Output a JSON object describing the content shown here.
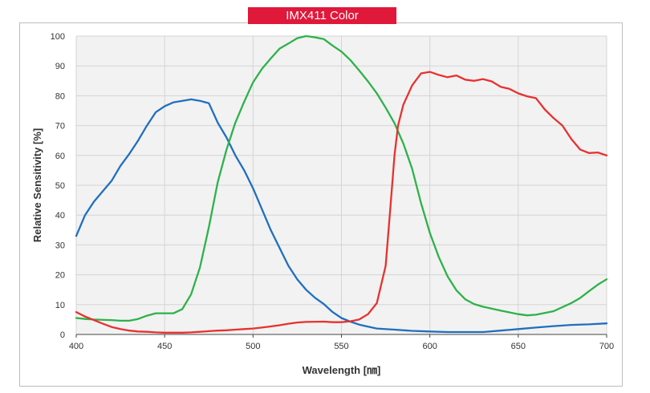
{
  "chart_data": {
    "type": "line",
    "title": "IMX411 Color",
    "xlabel": "Wavelength [㎚]",
    "ylabel": "Relative Sensitivity [%]",
    "xlim": [
      400,
      700
    ],
    "ylim": [
      0,
      100
    ],
    "x_ticks": [
      400,
      450,
      500,
      550,
      600,
      650,
      700
    ],
    "y_ticks": [
      0,
      10,
      20,
      30,
      40,
      50,
      60,
      70,
      80,
      90,
      100
    ],
    "grid": true,
    "legend": "none",
    "colors": {
      "blue": "#1f6fbf",
      "green": "#2db24a",
      "red": "#e8312f",
      "grid": "#d4d4d4",
      "plot_bg": "#f2f2f2",
      "badge": "#e0183a"
    },
    "series": [
      {
        "color": "blue",
        "points": [
          [
            400,
            33
          ],
          [
            405,
            40
          ],
          [
            410,
            44.5
          ],
          [
            415,
            48
          ],
          [
            420,
            51.5
          ],
          [
            425,
            56.5
          ],
          [
            430,
            60.5
          ],
          [
            435,
            65
          ],
          [
            440,
            70
          ],
          [
            445,
            74.5
          ],
          [
            450,
            76.5
          ],
          [
            455,
            77.8
          ],
          [
            460,
            78.3
          ],
          [
            465,
            78.8
          ],
          [
            470,
            78.3
          ],
          [
            475,
            77.5
          ],
          [
            480,
            71
          ],
          [
            485,
            66
          ],
          [
            490,
            60
          ],
          [
            495,
            55
          ],
          [
            500,
            49
          ],
          [
            505,
            42
          ],
          [
            510,
            35
          ],
          [
            515,
            29
          ],
          [
            520,
            23
          ],
          [
            525,
            18.5
          ],
          [
            530,
            15
          ],
          [
            535,
            12.3
          ],
          [
            540,
            10.2
          ],
          [
            545,
            7.5
          ],
          [
            550,
            5.5
          ],
          [
            555,
            4.3
          ],
          [
            560,
            3.3
          ],
          [
            565,
            2.6
          ],
          [
            570,
            2
          ],
          [
            580,
            1.6
          ],
          [
            590,
            1.2
          ],
          [
            600,
            1
          ],
          [
            610,
            0.8
          ],
          [
            620,
            0.8
          ],
          [
            630,
            0.8
          ],
          [
            640,
            1.3
          ],
          [
            650,
            1.8
          ],
          [
            660,
            2.3
          ],
          [
            670,
            2.8
          ],
          [
            680,
            3.2
          ],
          [
            690,
            3.4
          ],
          [
            700,
            3.7
          ]
        ]
      },
      {
        "color": "green",
        "points": [
          [
            400,
            5.5
          ],
          [
            405,
            5.2
          ],
          [
            410,
            5.0
          ],
          [
            420,
            4.8
          ],
          [
            425,
            4.6
          ],
          [
            430,
            4.6
          ],
          [
            435,
            5.2
          ],
          [
            440,
            6.3
          ],
          [
            445,
            7.1
          ],
          [
            450,
            7.1
          ],
          [
            455,
            7.1
          ],
          [
            460,
            8.5
          ],
          [
            465,
            13.5
          ],
          [
            470,
            22.5
          ],
          [
            475,
            36
          ],
          [
            480,
            51
          ],
          [
            485,
            62
          ],
          [
            490,
            71
          ],
          [
            495,
            78
          ],
          [
            500,
            84.5
          ],
          [
            505,
            89
          ],
          [
            510,
            92.5
          ],
          [
            515,
            95.8
          ],
          [
            520,
            97.5
          ],
          [
            525,
            99.3
          ],
          [
            530,
            100
          ],
          [
            535,
            99.6
          ],
          [
            540,
            99
          ],
          [
            545,
            96.8
          ],
          [
            550,
            94.8
          ],
          [
            555,
            92
          ],
          [
            560,
            88.5
          ],
          [
            565,
            84.8
          ],
          [
            570,
            80.8
          ],
          [
            575,
            76
          ],
          [
            580,
            70.8
          ],
          [
            585,
            64
          ],
          [
            590,
            55.5
          ],
          [
            595,
            44
          ],
          [
            600,
            34
          ],
          [
            605,
            26
          ],
          [
            610,
            19.5
          ],
          [
            615,
            14.8
          ],
          [
            620,
            11.8
          ],
          [
            625,
            10.2
          ],
          [
            630,
            9.3
          ],
          [
            640,
            8
          ],
          [
            650,
            6.8
          ],
          [
            655,
            6.4
          ],
          [
            660,
            6.6
          ],
          [
            670,
            7.8
          ],
          [
            680,
            10.5
          ],
          [
            685,
            12.2
          ],
          [
            690,
            14.5
          ],
          [
            695,
            16.7
          ],
          [
            700,
            18.5
          ]
        ]
      },
      {
        "color": "red",
        "points": [
          [
            400,
            7.5
          ],
          [
            405,
            6
          ],
          [
            410,
            4.8
          ],
          [
            415,
            3.6
          ],
          [
            420,
            2.5
          ],
          [
            425,
            1.8
          ],
          [
            430,
            1.3
          ],
          [
            435,
            1
          ],
          [
            440,
            0.9
          ],
          [
            445,
            0.7
          ],
          [
            450,
            0.6
          ],
          [
            460,
            0.6
          ],
          [
            465,
            0.7
          ],
          [
            470,
            0.9
          ],
          [
            475,
            1.1
          ],
          [
            480,
            1.3
          ],
          [
            485,
            1.4
          ],
          [
            490,
            1.6
          ],
          [
            495,
            1.8
          ],
          [
            500,
            2
          ],
          [
            505,
            2.3
          ],
          [
            510,
            2.7
          ],
          [
            515,
            3.1
          ],
          [
            520,
            3.6
          ],
          [
            525,
            4
          ],
          [
            530,
            4.2
          ],
          [
            540,
            4.3
          ],
          [
            545,
            4.1
          ],
          [
            550,
            4.1
          ],
          [
            555,
            4.4
          ],
          [
            560,
            5
          ],
          [
            565,
            6.8
          ],
          [
            570,
            10.5
          ],
          [
            575,
            23
          ],
          [
            578,
            45
          ],
          [
            580,
            60
          ],
          [
            582,
            70
          ],
          [
            585,
            77
          ],
          [
            590,
            83.5
          ],
          [
            595,
            87.5
          ],
          [
            600,
            88
          ],
          [
            605,
            87
          ],
          [
            610,
            86.2
          ],
          [
            615,
            86.8
          ],
          [
            620,
            85.4
          ],
          [
            625,
            85
          ],
          [
            630,
            85.6
          ],
          [
            635,
            84.8
          ],
          [
            640,
            83
          ],
          [
            645,
            82.3
          ],
          [
            650,
            80.8
          ],
          [
            655,
            79.8
          ],
          [
            660,
            79.2
          ],
          [
            665,
            75.4
          ],
          [
            670,
            72.5
          ],
          [
            675,
            70
          ],
          [
            680,
            65.5
          ],
          [
            685,
            62
          ],
          [
            690,
            60.8
          ],
          [
            695,
            61
          ],
          [
            700,
            60
          ]
        ]
      }
    ]
  }
}
